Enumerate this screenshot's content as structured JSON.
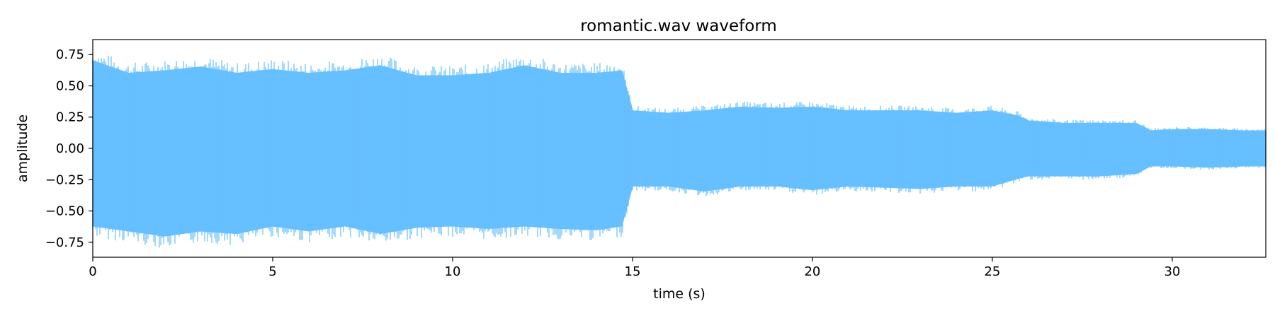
{
  "chart_data": {
    "type": "area",
    "title": "romantic.wav waveform",
    "xlabel": "time (s)",
    "ylabel": "amplitude",
    "xlim": [
      0,
      32.6
    ],
    "ylim": [
      -0.87,
      0.87
    ],
    "x_ticks": [
      0,
      5,
      10,
      15,
      20,
      25,
      30
    ],
    "x_tick_labels": [
      "0",
      "5",
      "10",
      "15",
      "20",
      "25",
      "30"
    ],
    "y_ticks": [
      0.75,
      0.5,
      0.25,
      0.0,
      -0.25,
      -0.5,
      -0.75
    ],
    "y_tick_labels": [
      "0.75",
      "0.50",
      "0.25",
      "0.00",
      "−0.25",
      "−0.50",
      "−0.75"
    ],
    "grid": false,
    "legend": "none",
    "color": "#66bfff",
    "series": [
      {
        "x": [
          0,
          1,
          2,
          3,
          4,
          5,
          6,
          7,
          8,
          9,
          10,
          11,
          12,
          13,
          14,
          14.7,
          15,
          16,
          17,
          18,
          19,
          20,
          21,
          22,
          23,
          24,
          25,
          25.7,
          26,
          27,
          28,
          29,
          29.4,
          30,
          31,
          32,
          32.6
        ],
        "upper": [
          0.7,
          0.6,
          0.62,
          0.65,
          0.6,
          0.63,
          0.6,
          0.62,
          0.66,
          0.58,
          0.58,
          0.6,
          0.66,
          0.6,
          0.6,
          0.62,
          0.3,
          0.28,
          0.3,
          0.33,
          0.32,
          0.33,
          0.3,
          0.3,
          0.3,
          0.28,
          0.3,
          0.26,
          0.22,
          0.2,
          0.2,
          0.2,
          0.14,
          0.15,
          0.15,
          0.14,
          0.14
        ],
        "lower": [
          -0.62,
          -0.66,
          -0.7,
          -0.66,
          -0.68,
          -0.62,
          -0.66,
          -0.62,
          -0.68,
          -0.63,
          -0.62,
          -0.64,
          -0.62,
          -0.64,
          -0.65,
          -0.62,
          -0.3,
          -0.3,
          -0.34,
          -0.3,
          -0.3,
          -0.33,
          -0.3,
          -0.31,
          -0.32,
          -0.3,
          -0.3,
          -0.24,
          -0.22,
          -0.22,
          -0.22,
          -0.2,
          -0.14,
          -0.14,
          -0.15,
          -0.14,
          -0.14
        ]
      }
    ]
  }
}
